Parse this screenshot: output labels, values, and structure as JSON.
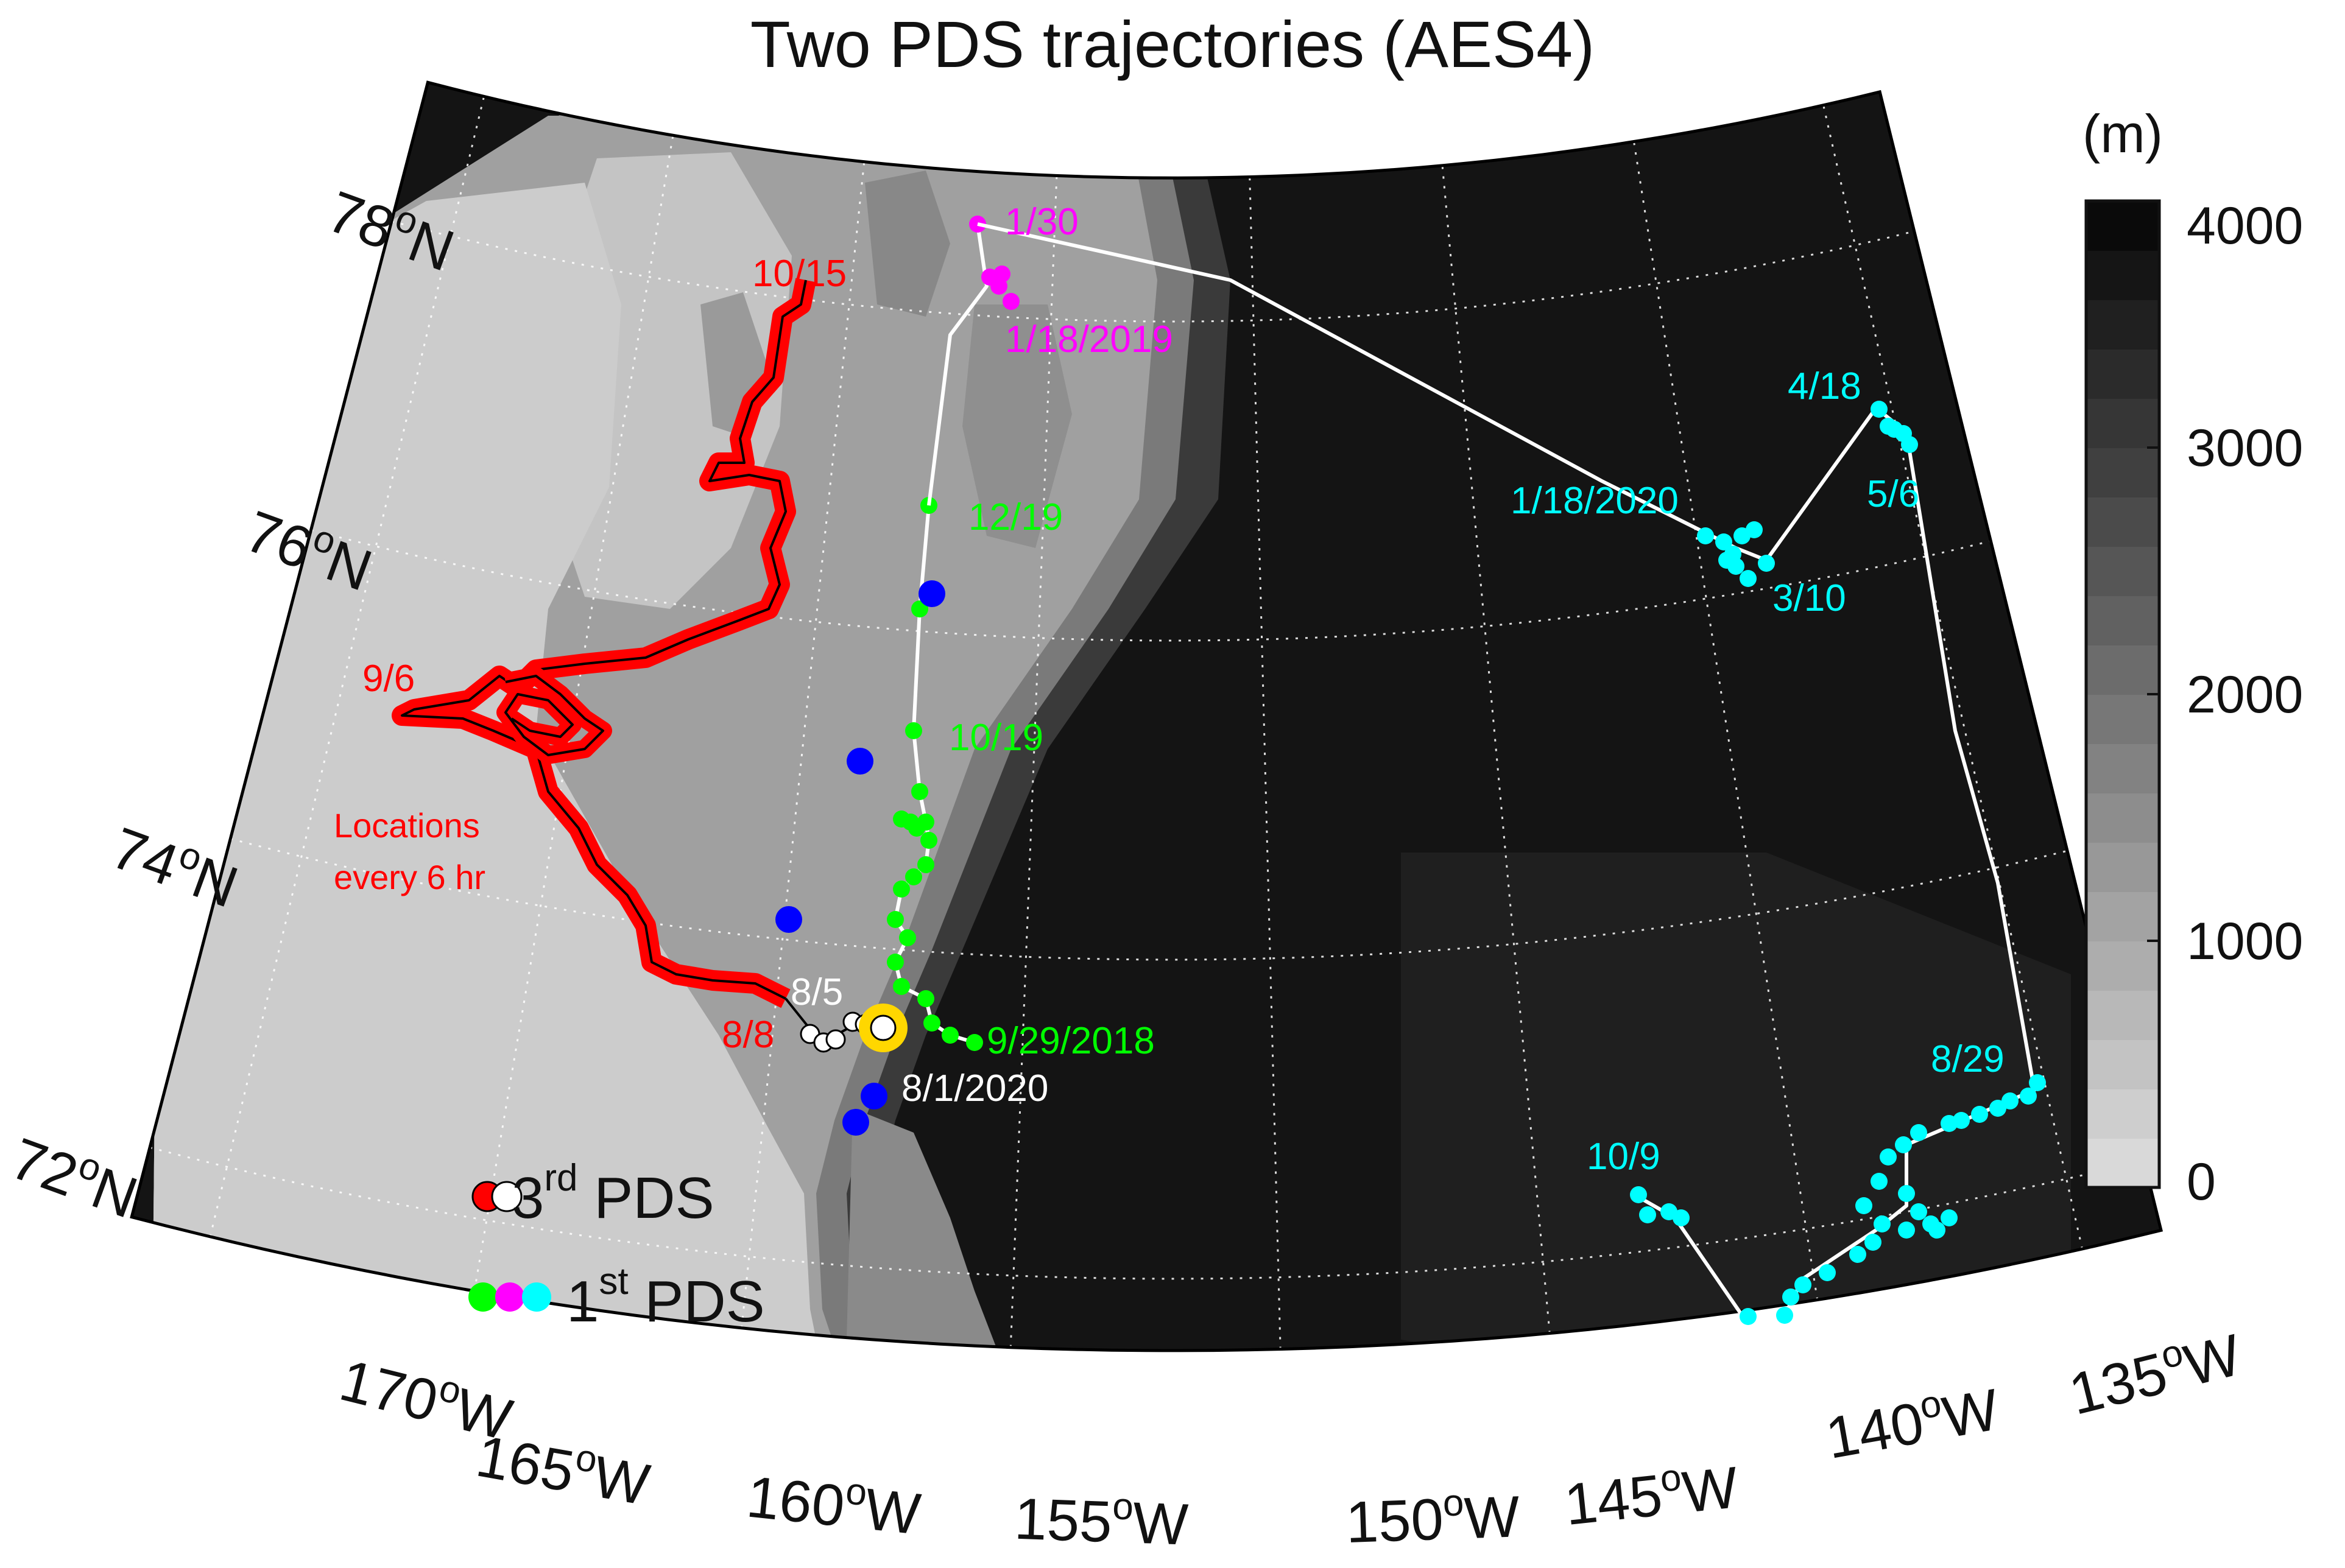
{
  "title": "Two PDS trajectories (AES4)",
  "colorbar": {
    "unit": "(m)",
    "ticks": [
      "4000",
      "3000",
      "2000",
      "1000",
      "0"
    ],
    "min": 0,
    "max": 4000,
    "color_shallow": "#d9d9d9",
    "color_deep": "#0a0a0a"
  },
  "lat_labels": {
    "lat78": {
      "deg": "78",
      "sup": "o",
      "hem": "N"
    },
    "lat76": {
      "deg": "76",
      "sup": "o",
      "hem": "N"
    },
    "lat74": {
      "deg": "74",
      "sup": "o",
      "hem": "N"
    },
    "lat72": {
      "deg": "72",
      "sup": "o",
      "hem": "N"
    }
  },
  "lon_labels": {
    "lon170": {
      "deg": "170",
      "sup": "o",
      "hem": "W"
    },
    "lon165": {
      "deg": "165",
      "sup": "o",
      "hem": "W"
    },
    "lon160": {
      "deg": "160",
      "sup": "o",
      "hem": "W"
    },
    "lon155": {
      "deg": "155",
      "sup": "o",
      "hem": "W"
    },
    "lon150": {
      "deg": "150",
      "sup": "o",
      "hem": "W"
    },
    "lon145": {
      "deg": "145",
      "sup": "o",
      "hem": "W"
    },
    "lon140": {
      "deg": "140",
      "sup": "o",
      "hem": "W"
    },
    "lon135": {
      "deg": "135",
      "sup": "o",
      "hem": "W"
    }
  },
  "annotations": {
    "red_10_15": "10/15",
    "red_9_6": "9/6",
    "red_8_8": "8/8",
    "red_note_1": "Locations",
    "red_note_2": "every 6 hr",
    "white_8_5": "8/5",
    "white_8_1_2020": "8/1/2020",
    "green_12_19": "12/19",
    "green_10_19": "10/19",
    "green_9_29_2018": "9/29/2018",
    "magenta_1_30": "1/30",
    "magenta_1_18_2019": "1/18/2019",
    "cyan_4_18": "4/18",
    "cyan_5_6": "5/6",
    "cyan_1_18_2020": "1/18/2020",
    "cyan_3_10": "3/10",
    "cyan_8_29": "8/29",
    "cyan_10_9": "10/9"
  },
  "legend": {
    "third_main": "3",
    "third_sup": "rd",
    "third_tail": " PDS",
    "first_main": "1",
    "first_sup": "st",
    "first_tail": " PDS"
  },
  "colors": {
    "third_pds_early": "#ff0000",
    "third_pds_late": "#ffffff",
    "first_pds_2018": "#00ff00",
    "first_pds_2019": "#ff00ff",
    "first_pds_2020": "#00ffff",
    "mooring": "#0000ff",
    "deployment": "#ffd700"
  },
  "legend_colors": {
    "third": [
      "#ff0000",
      "#ffffff"
    ],
    "first": [
      "#00ff00",
      "#ff00ff",
      "#00ffff"
    ]
  }
}
